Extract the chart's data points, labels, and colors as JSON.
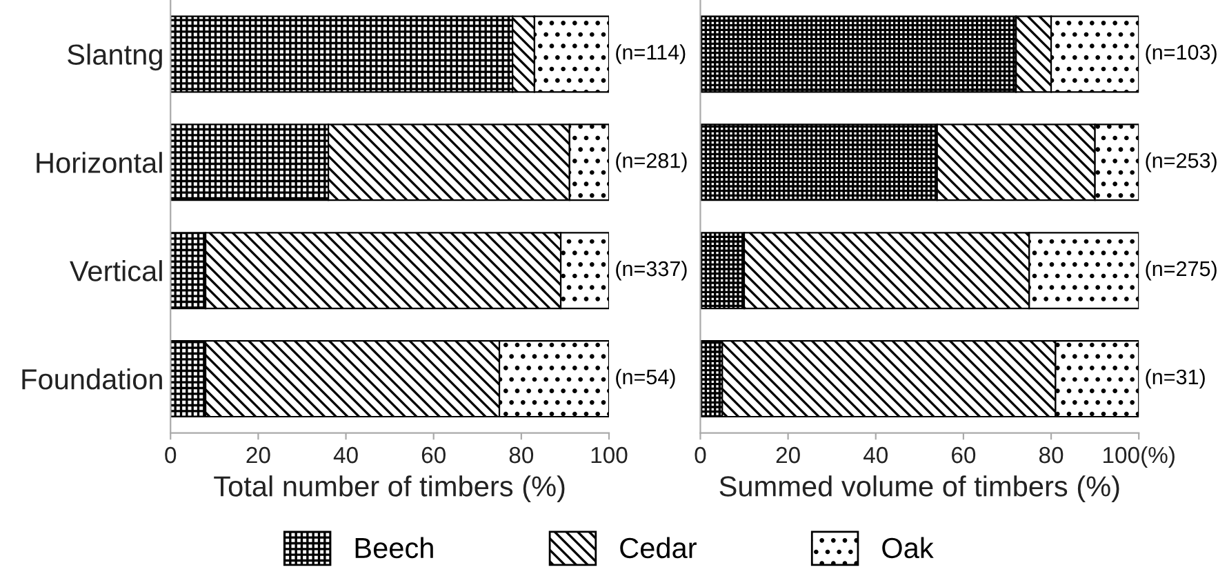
{
  "chart_data": [
    {
      "type": "bar",
      "orientation": "horizontal",
      "stacked": true,
      "categories": [
        "Slantng",
        "Horizontal",
        "Vertical",
        "Foundation"
      ],
      "xlabel": "Total number of timbers (%)",
      "xlim": [
        0,
        100
      ],
      "xticks": [
        0,
        20,
        40,
        60,
        80,
        100
      ],
      "legend": "bottom",
      "series": [
        {
          "name": "Beech",
          "color": "#000000",
          "values": [
            78,
            36,
            8,
            8
          ]
        },
        {
          "name": "Cedar",
          "color": "#000000",
          "values": [
            5,
            55,
            81,
            67
          ]
        },
        {
          "name": "Oak",
          "color": "#000000",
          "values": [
            17,
            9,
            11,
            25
          ]
        }
      ],
      "annotations": [
        "(n=114)",
        "(n=281)",
        "(n=337)",
        "(n=54)"
      ]
    },
    {
      "type": "bar",
      "orientation": "horizontal",
      "stacked": true,
      "categories": [
        null,
        null,
        null,
        null
      ],
      "xlabel": "Summed volume of timbers (%)",
      "xlim": [
        0,
        100
      ],
      "xticks": [
        0,
        20,
        40,
        60,
        80,
        {
          "value": 100,
          "label": "100(%)"
        }
      ],
      "series": [
        {
          "color": "#000000",
          "values": [
            72,
            54,
            10,
            5
          ]
        },
        {
          "color": "#000000",
          "values": [
            8,
            36,
            65,
            76
          ]
        },
        {
          "color": "#000000",
          "values": [
            20,
            10,
            25,
            19
          ]
        }
      ],
      "annotations": [
        "(n=103)",
        "(n=253)",
        "(n=275)",
        "(n=31)"
      ]
    }
  ]
}
